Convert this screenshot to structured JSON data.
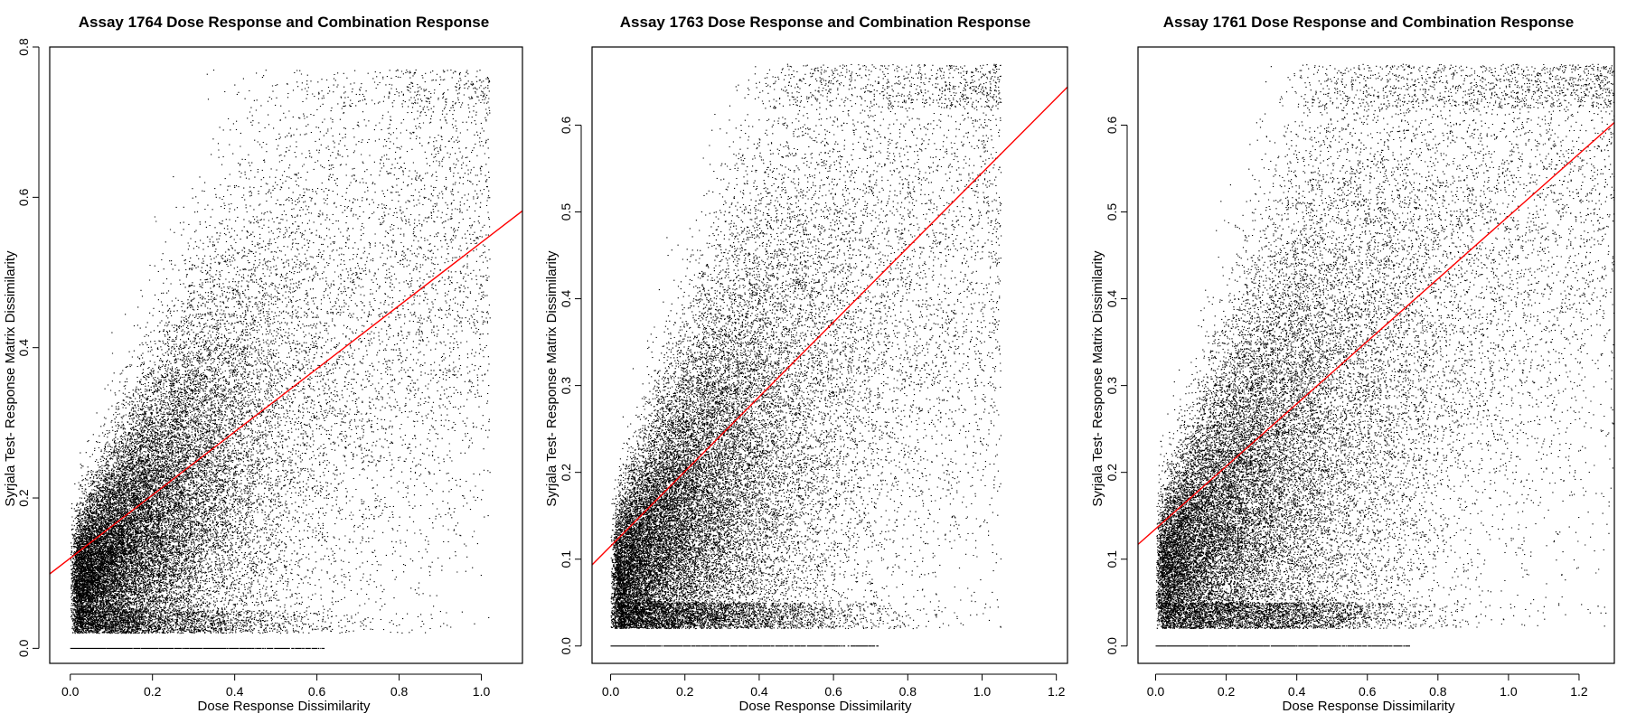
{
  "chart_data": [
    {
      "type": "scatter",
      "title": "Assay 1764 Dose Response and Combination Response",
      "xlabel": "Dose Response Dissimilarity",
      "ylabel": "Syrjala Test- Response Matrix Dissimilarity",
      "xlim": [
        -0.05,
        1.1
      ],
      "ylim": [
        -0.02,
        0.8
      ],
      "xticks": [
        "0.0",
        "0.2",
        "0.4",
        "0.6",
        "0.8",
        "1.0"
      ],
      "yticks": [
        "0.0",
        "0.2",
        "0.4",
        "0.6",
        "0.8"
      ],
      "point_color": "#000000",
      "fit_line": {
        "color": "#ff0000",
        "intercept": 0.12,
        "slope": 0.42
      },
      "cloud": {
        "x_center": 0.22,
        "y_intercept": 0.08,
        "y_slope": 0.62,
        "x_max": 1.02,
        "y_max": 0.77
      },
      "zero_row": {
        "y": 0.0,
        "x_range": [
          0.0,
          0.62
        ]
      },
      "grid": false
    },
    {
      "type": "scatter",
      "title": "Assay 1763 Dose Response and Combination Response",
      "xlabel": "Dose Response Dissimilarity",
      "ylabel": "Syrjala Test- Response Matrix Dissimilarity",
      "xlim": [
        -0.05,
        1.23
      ],
      "ylim": [
        -0.02,
        0.69
      ],
      "xticks": [
        "0.0",
        "0.2",
        "0.4",
        "0.6",
        "0.8",
        "1.0",
        "1.2"
      ],
      "yticks": [
        "0.0",
        "0.1",
        "0.2",
        "0.3",
        "0.4",
        "0.5",
        "0.6"
      ],
      "point_color": "#000000",
      "fit_line": {
        "color": "#ff0000",
        "intercept": 0.115,
        "slope": 0.43
      },
      "cloud": {
        "x_center": 0.28,
        "y_intercept": 0.07,
        "y_slope": 0.55,
        "x_max": 1.05,
        "y_max": 0.67
      },
      "zero_row": {
        "y": 0.0,
        "x_range": [
          0.0,
          0.72
        ]
      },
      "grid": false
    },
    {
      "type": "scatter",
      "title": "Assay 1761 Dose Response and Combination Response",
      "xlabel": "Dose Response Dissimilarity",
      "ylabel": "Syrjala Test- Response Matrix Dissimilarity",
      "xlim": [
        -0.05,
        1.3
      ],
      "ylim": [
        -0.02,
        0.69
      ],
      "xticks": [
        "0.0",
        "0.2",
        "0.4",
        "0.6",
        "0.8",
        "1.0",
        "1.2"
      ],
      "yticks": [
        "0.0",
        "0.1",
        "0.2",
        "0.3",
        "0.4",
        "0.5",
        "0.6"
      ],
      "point_color": "#000000",
      "fit_line": {
        "color": "#ff0000",
        "intercept": 0.135,
        "slope": 0.36
      },
      "cloud": {
        "x_center": 0.35,
        "y_intercept": 0.08,
        "y_slope": 0.5,
        "x_max": 1.3,
        "y_max": 0.67
      },
      "zero_row": {
        "y": 0.0,
        "x_range": [
          0.0,
          0.72
        ]
      },
      "grid": false
    }
  ]
}
